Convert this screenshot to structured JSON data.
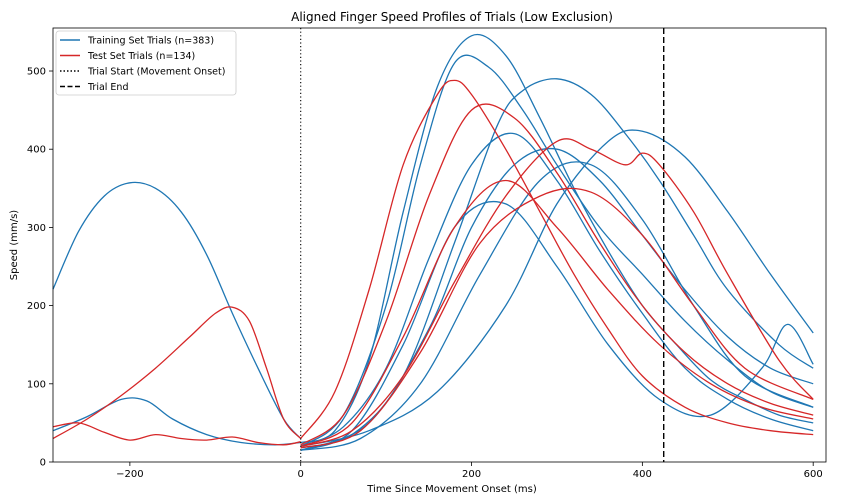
{
  "chart_data": {
    "type": "line",
    "title": "Aligned Finger Speed Profiles of Trials (Low Exclusion)",
    "xlabel": "Time Since Movement Onset (ms)",
    "ylabel": "Speed (mm/s)",
    "xlim": [
      -290,
      615
    ],
    "ylim": [
      0,
      555
    ],
    "xticks": [
      -200,
      0,
      200,
      400,
      600
    ],
    "xtick_labels": [
      "−200",
      "0",
      "200",
      "400",
      "600"
    ],
    "yticks": [
      0,
      100,
      200,
      300,
      400,
      500
    ],
    "ytick_labels": [
      "0",
      "100",
      "200",
      "300",
      "400",
      "500"
    ],
    "grid": false,
    "legend_position": "top-left",
    "colors": {
      "training": "#1f77b4",
      "test": "#d62728",
      "marker": "#000000"
    },
    "series": [
      {
        "name": "Training Set Trials (n=383)",
        "group": "training",
        "representative_trials": [
          {
            "x": [
              -290,
              -260,
              -230,
              -200,
              -170,
              -140,
              -110,
              -80,
              -50,
              -20,
              0
            ],
            "y": [
              221,
              295,
              340,
              357,
              350,
              320,
              265,
              190,
              120,
              55,
              30
            ]
          },
          {
            "x": [
              -290,
              -250,
              -210,
              -180,
              -150,
              -110,
              -70,
              -30,
              0
            ],
            "y": [
              40,
              58,
              80,
              78,
              55,
              35,
              25,
              22,
              25
            ]
          },
          {
            "x": [
              0,
              40,
              80,
              120,
              160,
              200,
              240,
              280,
              320,
              360,
              400,
              440,
              480,
              520,
              560,
              600
            ],
            "y": [
              25,
              40,
              130,
              320,
              480,
              545,
              520,
              440,
              350,
              270,
              200,
              150,
              105,
              80,
              60,
              50
            ]
          },
          {
            "x": [
              0,
              50,
              100,
              140,
              180,
              220,
              260,
              300,
              350,
              400,
              450,
              500,
              550,
              600
            ],
            "y": [
              20,
              60,
              200,
              380,
              510,
              505,
              450,
              380,
              300,
              240,
              180,
              130,
              90,
              70
            ]
          },
          {
            "x": [
              0,
              60,
              120,
              180,
              230,
              260,
              300,
              340,
              380,
              420,
              460,
              500,
              560,
              600
            ],
            "y": [
              18,
              35,
              110,
              280,
              430,
              475,
              490,
              470,
              420,
              360,
              290,
              220,
              150,
              120
            ]
          },
          {
            "x": [
              0,
              80,
              160,
              240,
              300,
              360,
              400,
              450,
              500,
              550,
              600
            ],
            "y": [
              20,
              40,
              90,
              200,
              330,
              410,
              423,
              390,
              320,
              240,
              165
            ]
          },
          {
            "x": [
              0,
              80,
              150,
              200,
              250,
              300,
              350,
              400,
              450,
              500,
              550,
              600
            ],
            "y": [
              15,
              50,
              170,
              300,
              380,
              400,
              360,
              290,
              220,
              160,
              120,
              100
            ]
          },
          {
            "x": [
              0,
              60,
              120,
              180,
              240,
              300,
              360,
              420,
              480,
              540,
              570,
              600
            ],
            "y": [
              15,
              40,
              150,
              300,
              330,
              250,
              150,
              80,
              60,
              120,
              176,
              125
            ]
          },
          {
            "x": [
              0,
              50,
              100,
              150,
              200,
              250,
              300,
              350,
              400,
              450,
              500,
              550,
              600
            ],
            "y": [
              20,
              45,
              120,
              260,
              380,
              420,
              360,
              270,
              190,
              120,
              80,
              55,
              40
            ]
          },
          {
            "x": [
              0,
              70,
              140,
              210,
              280,
              340,
              400,
              460,
              520,
              600
            ],
            "y": [
              15,
              30,
              100,
              240,
              360,
              380,
              310,
              200,
              110,
              70
            ]
          }
        ]
      },
      {
        "name": "Test Set Trials (n=134)",
        "group": "test",
        "representative_trials": [
          {
            "x": [
              -290,
              -250,
              -210,
              -170,
              -130,
              -100,
              -80,
              -60,
              -40,
              -20,
              0
            ],
            "y": [
              30,
              55,
              85,
              120,
              160,
              190,
              198,
              180,
              120,
              55,
              30
            ]
          },
          {
            "x": [
              -290,
              -260,
              -230,
              -200,
              -170,
              -140,
              -110,
              -80,
              -50,
              -20,
              0
            ],
            "y": [
              45,
              50,
              38,
              28,
              35,
              30,
              28,
              32,
              25,
              22,
              26
            ]
          },
          {
            "x": [
              0,
              40,
              80,
              120,
              160,
              180,
              200,
              240,
              280,
              320,
              360,
              400,
              450,
              500,
              550,
              600
            ],
            "y": [
              30,
              90,
              220,
              380,
              470,
              488,
              470,
              400,
              320,
              240,
              170,
              110,
              70,
              50,
              40,
              35
            ]
          },
          {
            "x": [
              0,
              60,
              120,
              180,
              240,
              300,
              340,
              380,
              400,
              420,
              460,
              500,
              560,
              600
            ],
            "y": [
              20,
              40,
              110,
              230,
              340,
              410,
              400,
              380,
              395,
              380,
              320,
              240,
              130,
              80
            ]
          },
          {
            "x": [
              0,
              50,
              100,
              150,
              200,
              250,
              300,
              350,
              400,
              450,
              500,
              550,
              600
            ],
            "y": [
              22,
              60,
              180,
              340,
              450,
              440,
              370,
              280,
              200,
              140,
              100,
              75,
              60
            ]
          },
          {
            "x": [
              0,
              70,
              140,
              210,
              280,
              340,
              400,
              460,
              520,
              600
            ],
            "y": [
              18,
              40,
              140,
              280,
              340,
              345,
              290,
              200,
              120,
              80
            ]
          },
          {
            "x": [
              0,
              60,
              120,
              180,
              240,
              300,
              360,
              420,
              480,
              540,
              600
            ],
            "y": [
              20,
              50,
              160,
              300,
              360,
              300,
              220,
              150,
              100,
              70,
              55
            ]
          }
        ]
      }
    ],
    "markers": [
      {
        "name": "Trial Start (Movement Onset)",
        "x": 0,
        "style": "dotted"
      },
      {
        "name": "Trial End",
        "x": 425,
        "style": "dashed"
      }
    ],
    "legend": [
      {
        "label": "Training Set Trials (n=383)",
        "style": "solid",
        "color": "#1f77b4"
      },
      {
        "label": "Test Set Trials (n=134)",
        "style": "solid",
        "color": "#d62728"
      },
      {
        "label": "Trial Start (Movement Onset)",
        "style": "dotted",
        "color": "#000000"
      },
      {
        "label": "Trial End",
        "style": "dashed",
        "color": "#000000"
      }
    ]
  }
}
